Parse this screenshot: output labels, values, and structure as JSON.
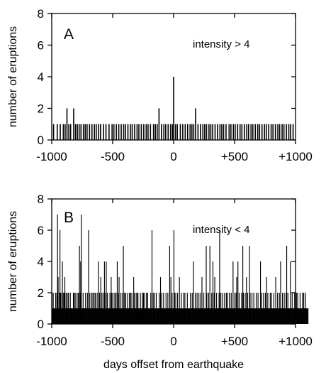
{
  "xlabel": "days offset from earthquake",
  "chart_data": [
    {
      "type": "bar",
      "panel": "A",
      "annotation": "intensity > 4",
      "ylabel": "number of eruptions",
      "xlim": [
        -1000,
        1000
      ],
      "ylim": [
        0,
        8
      ],
      "xticks": [
        "-1000",
        "-500",
        "0",
        "+500",
        "+1000"
      ],
      "yticks": [
        "0",
        "2",
        "4",
        "6",
        "8"
      ],
      "x": [
        -985,
        -955,
        -930,
        -905,
        -890,
        -875,
        -860,
        -845,
        -820,
        -805,
        -790,
        -775,
        -760,
        -740,
        -725,
        -710,
        -690,
        -670,
        -650,
        -635,
        -615,
        -600,
        -575,
        -555,
        -530,
        -505,
        -490,
        -470,
        -450,
        -430,
        -410,
        -395,
        -375,
        -355,
        -340,
        -320,
        -300,
        -285,
        -265,
        -245,
        -225,
        -210,
        -190,
        -165,
        -150,
        -135,
        -120,
        -100,
        -80,
        -65,
        -45,
        -25,
        -10,
        0,
        15,
        30,
        55,
        75,
        95,
        115,
        135,
        150,
        165,
        180,
        200,
        220,
        240,
        255,
        270,
        290,
        305,
        320,
        340,
        360,
        380,
        395,
        410,
        430,
        455,
        470,
        490,
        505,
        525,
        545,
        560,
        580,
        600,
        615,
        635,
        650,
        670,
        690,
        705,
        725,
        745,
        760,
        780,
        800,
        815,
        835,
        855,
        870,
        890,
        905,
        925,
        945,
        960,
        980
      ],
      "values": [
        1,
        1,
        1,
        1,
        1,
        2,
        1,
        1,
        2,
        1,
        1,
        1,
        1,
        1,
        1,
        1,
        1,
        1,
        1,
        1,
        1,
        1,
        1,
        1,
        1,
        1,
        1,
        1,
        1,
        1,
        1,
        1,
        1,
        1,
        1,
        1,
        1,
        1,
        1,
        1,
        1,
        1,
        1,
        1,
        1,
        1,
        2,
        1,
        1,
        1,
        1,
        1,
        1,
        4,
        1,
        1,
        1,
        1,
        1,
        1,
        1,
        1,
        1,
        2,
        1,
        1,
        1,
        1,
        1,
        1,
        1,
        1,
        1,
        1,
        1,
        1,
        1,
        1,
        1,
        1,
        1,
        1,
        1,
        1,
        1,
        1,
        1,
        1,
        1,
        1,
        1,
        1,
        1,
        1,
        1,
        1,
        1,
        1,
        1,
        1,
        1,
        1,
        1,
        1,
        1,
        1,
        1,
        1
      ]
    },
    {
      "type": "bar",
      "panel": "B",
      "annotation": "intensity < 4",
      "ylabel": "number of eruptions",
      "xlim": [
        -1000,
        1000
      ],
      "ylim": [
        0,
        8
      ],
      "xticks": [
        "-1000",
        "-500",
        "0",
        "+500",
        "+1000"
      ],
      "yticks": [
        "0",
        "2",
        "4",
        "6",
        "8"
      ],
      "bin_days": 5,
      "x_start": -1000,
      "values": [
        2,
        1,
        2,
        1,
        1,
        1,
        2,
        1,
        2,
        7,
        3,
        1,
        2,
        6,
        2,
        1,
        2,
        4,
        1,
        2,
        2,
        3,
        1,
        2,
        1,
        2,
        1,
        2,
        1,
        1,
        2,
        1,
        1,
        1,
        1,
        2,
        2,
        1,
        2,
        1,
        1,
        2,
        1,
        2,
        1,
        5,
        2,
        4,
        7,
        1,
        1,
        2,
        1,
        1,
        1,
        2,
        1,
        1,
        2,
        1,
        6,
        1,
        2,
        1,
        1,
        2,
        1,
        2,
        1,
        2,
        1,
        2,
        1,
        1,
        2,
        1,
        4,
        1,
        2,
        1,
        3,
        1,
        2,
        1,
        1,
        2,
        4,
        1,
        2,
        4,
        1,
        2,
        1,
        1,
        1,
        2,
        1,
        3,
        2,
        1,
        2,
        1,
        1,
        2,
        1,
        2,
        1,
        4,
        1,
        2,
        3,
        1,
        1,
        2,
        1,
        1,
        2,
        5,
        1,
        2,
        1,
        2,
        1,
        1,
        2,
        1,
        1,
        2,
        1,
        2,
        1,
        2,
        1,
        1,
        3,
        2,
        1,
        1,
        2,
        1,
        2,
        2,
        1,
        1,
        1,
        2,
        1,
        1,
        2,
        1,
        2,
        1,
        2,
        1,
        1,
        2,
        1,
        2,
        1,
        1,
        1,
        1,
        2,
        1,
        6,
        1,
        2,
        1,
        2,
        1,
        1,
        2,
        1,
        1,
        1,
        1,
        2,
        1,
        3,
        1,
        2,
        1,
        1,
        2,
        1,
        1,
        1,
        2,
        1,
        1,
        2,
        1,
        1,
        5,
        1,
        3,
        1,
        2,
        1,
        1,
        6,
        2,
        1,
        2,
        1,
        1,
        2,
        1,
        1,
        3,
        1,
        1,
        2,
        1,
        1,
        1,
        2,
        1,
        2,
        1,
        1,
        1,
        2,
        1,
        1,
        1,
        1,
        2,
        1,
        1,
        2,
        1,
        4,
        1,
        1,
        2,
        1,
        1,
        2,
        1,
        1,
        2,
        1,
        1,
        2,
        1,
        3,
        1,
        1,
        2,
        1,
        1,
        1,
        5,
        2,
        1,
        1,
        2,
        1,
        5,
        1,
        1,
        2,
        1,
        4,
        1,
        2,
        3,
        1,
        1,
        2,
        1,
        1,
        1,
        2,
        6,
        1,
        2,
        1,
        1,
        2,
        1,
        1,
        2,
        1,
        1,
        2,
        1,
        2,
        1,
        1,
        2,
        1,
        1,
        2,
        1,
        1,
        4,
        1,
        1,
        2,
        1,
        2,
        3,
        1,
        4,
        1,
        2,
        1,
        1,
        1,
        2,
        1,
        5,
        2,
        1,
        1,
        2,
        1,
        3,
        1,
        2,
        1,
        1,
        5,
        2,
        1,
        1,
        2,
        1,
        1,
        2,
        1,
        1,
        1,
        2,
        1,
        1,
        2,
        1,
        1,
        1,
        4,
        1,
        2,
        1,
        1,
        2,
        1,
        1,
        2,
        1,
        3,
        1,
        2,
        1,
        1,
        1,
        2,
        1,
        2,
        1,
        1,
        1,
        2,
        1,
        1,
        3,
        1,
        1,
        2,
        1,
        1,
        2,
        1,
        4,
        1,
        1,
        2,
        1,
        1,
        2,
        1,
        1,
        2,
        5,
        1,
        2,
        1,
        1,
        1,
        4,
        1,
        1,
        2,
        1,
        1,
        1,
        2,
        1,
        1,
        2,
        1,
        2,
        1,
        1,
        1,
        2,
        1,
        1,
        1,
        2,
        1,
        2,
        1,
        1,
        2,
        1,
        1,
        1,
        1
      ]
    }
  ]
}
